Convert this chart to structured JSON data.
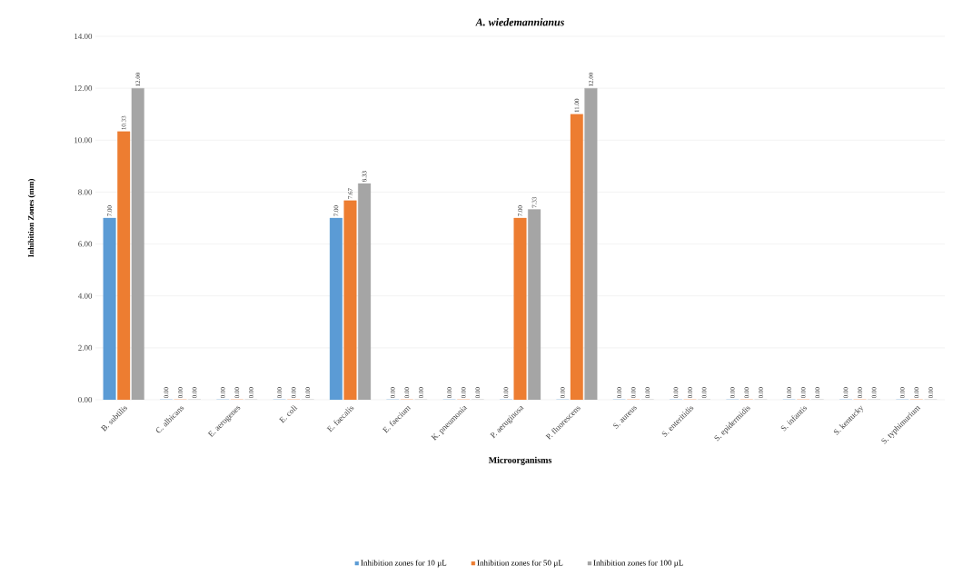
{
  "chart_data": {
    "type": "bar",
    "title": "A. wiedemannianus",
    "xlabel": "Microorganisms",
    "ylabel": "Inhibition Zones (mm)",
    "categories": [
      "B. subtilis",
      "C. albicans",
      "E. aerogenes",
      "E. coli",
      "E. faecalis",
      "E. faecium",
      "K. pneumonia",
      "P. aeruginosa",
      "P. fluorescens",
      "S. aureus",
      "S. enteritidis",
      "S. epidermidis",
      "S. infantis",
      "S. kentucky",
      "S. typhimurium"
    ],
    "series": [
      {
        "name": "Inhibition zones for 10 µL",
        "color": "#5b9bd5",
        "values": [
          7,
          0,
          0,
          0,
          7,
          0,
          0,
          0,
          0,
          0,
          0,
          0,
          0,
          0,
          0
        ],
        "value_labels": [
          "7.00",
          "0.00",
          "0.00",
          "0.00",
          "7.00",
          "0.00",
          "0.00",
          "0.00",
          "0.00",
          "0.00",
          "0.00",
          "0.00",
          "0.00",
          "0.00",
          "0.00"
        ]
      },
      {
        "name": "Inhibition zones for 50 µL",
        "color": "#ed7d31",
        "values": [
          10.33,
          0,
          0,
          0,
          7.67,
          0,
          0,
          7,
          11,
          0,
          0,
          0,
          0,
          0,
          0
        ],
        "value_labels": [
          "10.33",
          "0.00",
          "0.00",
          "0.00",
          "7.67",
          "0.00",
          "0.00",
          "7.00",
          "11.00",
          "0.00",
          "0.00",
          "0.00",
          "0.00",
          "0.00",
          "0.00"
        ]
      },
      {
        "name": "Inhibition zones for 100 µL",
        "color": "#a5a5a5",
        "values": [
          12,
          0,
          0,
          0,
          8.33,
          0,
          0,
          7.33,
          12,
          0,
          0,
          0,
          0,
          0,
          0
        ],
        "value_labels": [
          "12.00",
          "0.00",
          "0.00",
          "0.00",
          "8.33",
          "0.00",
          "0.00",
          "7.33",
          "12.00",
          "0.00",
          "0.00",
          "0.00",
          "0.00",
          "0.00",
          "0.00"
        ]
      }
    ],
    "ylim": [
      0,
      14
    ],
    "yticks": [
      {
        "value": 0,
        "label": "0.00"
      },
      {
        "value": 2,
        "label": "2.00"
      },
      {
        "value": 4,
        "label": "4.00"
      },
      {
        "value": 6,
        "label": "6.00"
      },
      {
        "value": 8,
        "label": "8.00"
      },
      {
        "value": 10,
        "label": "10.00"
      },
      {
        "value": 12,
        "label": "12.00"
      },
      {
        "value": 14,
        "label": "14.00"
      }
    ],
    "grid": "y",
    "legend": "bottom"
  }
}
